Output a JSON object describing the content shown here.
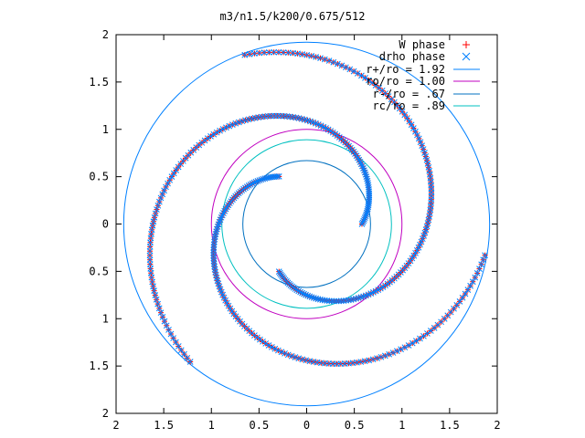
{
  "chart_data": {
    "type": "scatter",
    "title": "m3/n1.5/k200/0.675/512",
    "xlabel": "",
    "ylabel": "",
    "xlim": [
      -2,
      2
    ],
    "ylim": [
      -2,
      2
    ],
    "x_ticks": [
      -2,
      -1.5,
      -1,
      -0.5,
      0,
      0.5,
      1,
      1.5,
      2
    ],
    "y_ticks": [
      2,
      1.5,
      1,
      0.5,
      0,
      -0.5,
      -1,
      -1.5,
      -2
    ],
    "x_tick_labels": [
      "2",
      "1.5",
      "1",
      "0.5",
      "0",
      "0.5",
      "1",
      "1.5",
      "2"
    ],
    "y_tick_labels": [
      "2",
      "1.5",
      "1",
      "0.5",
      "0",
      "0.5",
      "1",
      "1.5",
      "2"
    ],
    "grid": false,
    "legend_position": "top-right",
    "series": [
      {
        "name": "W phase",
        "marker": "plus",
        "color": "#ff0000",
        "spirals": [
          {
            "theta_start_deg": -120,
            "r": [
              0.58,
              1.9
            ],
            "turn_deg": 230
          },
          {
            "theta_start_deg": 0,
            "r": [
              0.58,
              1.9
            ],
            "turn_deg": 230
          },
          {
            "theta_start_deg": 120,
            "r": [
              0.58,
              1.9
            ],
            "turn_deg": 230
          }
        ]
      },
      {
        "name": "drho phase",
        "marker": "cross",
        "color": "#0080ff",
        "spirals": [
          {
            "theta_start_deg": -120,
            "r": [
              0.58,
              1.9
            ],
            "turn_deg": 230
          },
          {
            "theta_start_deg": 0,
            "r": [
              0.58,
              1.9
            ],
            "turn_deg": 230
          },
          {
            "theta_start_deg": 120,
            "r": [
              0.58,
              1.9
            ],
            "turn_deg": 230
          }
        ]
      }
    ],
    "circles": [
      {
        "name": "r+/ro = 1.92",
        "r": 1.92,
        "color": "#0080ff"
      },
      {
        "name": "ro/ro = 1.00",
        "r": 1.0,
        "color": "#c000c0"
      },
      {
        "name": "r-/ro = .67",
        "r": 0.67,
        "color": "#0070c0"
      },
      {
        "name": "rc/ro = .89",
        "r": 0.89,
        "color": "#00c0c0"
      }
    ]
  }
}
